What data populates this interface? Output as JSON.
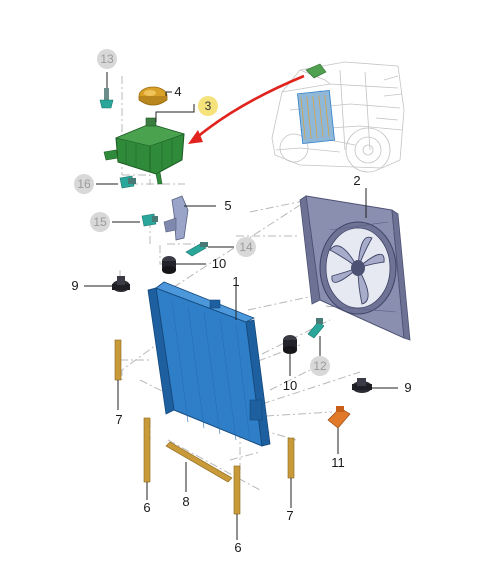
{
  "callouts": {
    "c1": "1",
    "c2": "2",
    "c3": "3",
    "c4": "4",
    "c5": "5",
    "c6a": "6",
    "c6b": "6",
    "c7a": "7",
    "c7b": "7",
    "c8": "8",
    "c9a": "9",
    "c9b": "9",
    "c10a": "10",
    "c10b": "10",
    "c11": "11",
    "c12": "12",
    "c13": "13",
    "c14": "14",
    "c15": "15",
    "c16": "16"
  },
  "colors": {
    "radiator": "#2f7fc8",
    "radiator_dark": "#1d5f9f",
    "fan_shroud": "#8a8fb0",
    "expansion_tank": "#2f8a3a",
    "cap": "#d9a128",
    "seal_strip": "#c99a3a",
    "highlight_badge": "#f5e27a",
    "ghost_badge": "#d8d8d8",
    "arrow": "#e0231d",
    "sensor": "#2aa79a"
  },
  "icons": {
    "direction_arrow": "red-arrow-icon",
    "vehicle_locator": "vehicle-locator-icon"
  }
}
